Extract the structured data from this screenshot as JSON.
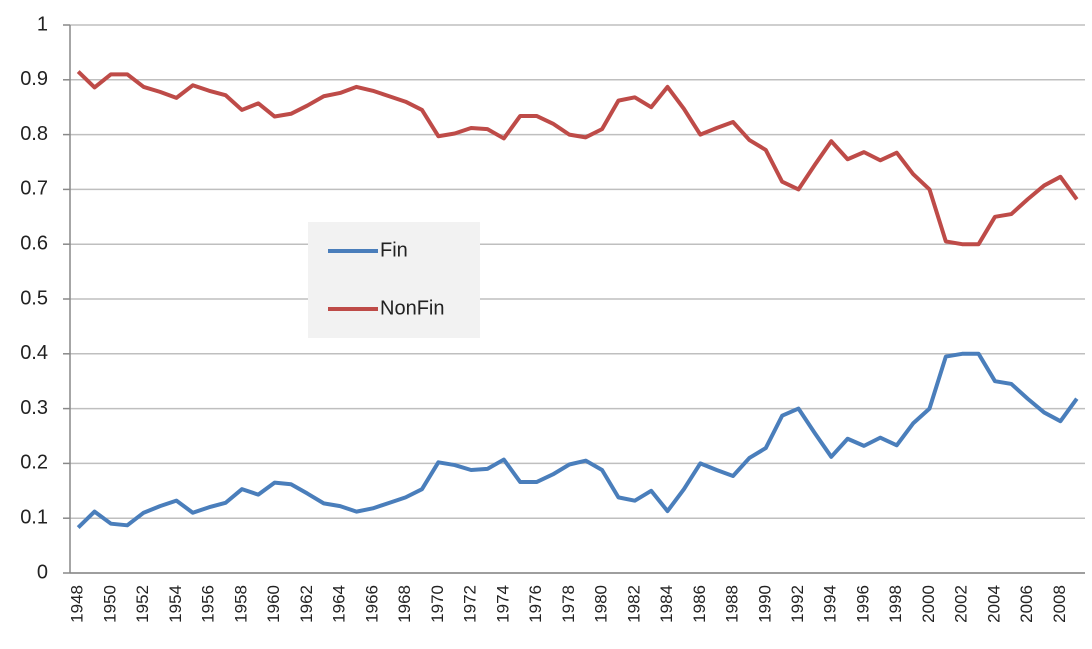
{
  "chart_data": {
    "type": "line",
    "categories": [
      "1948",
      null,
      "1950",
      null,
      "1952",
      null,
      "1954",
      null,
      "1956",
      null,
      "1958",
      null,
      "1960",
      null,
      "1962",
      null,
      "1964",
      null,
      "1966",
      null,
      "1968",
      null,
      "1970",
      null,
      "1972",
      null,
      "1974",
      null,
      "1976",
      null,
      "1978",
      null,
      "1980",
      null,
      "1982",
      null,
      "1984",
      null,
      "1986",
      null,
      "1988",
      null,
      "1990",
      null,
      "1992",
      null,
      "1994",
      null,
      "1996",
      null,
      "1998",
      null,
      "2000",
      null,
      "2002",
      null,
      "2004",
      null,
      "2006",
      null,
      "2008",
      null
    ],
    "series": [
      {
        "name": "Fin",
        "color": "#4a7ebb",
        "values": [
          0.083,
          0.112,
          0.09,
          0.087,
          0.11,
          0.122,
          0.132,
          0.11,
          0.12,
          0.128,
          0.153,
          0.143,
          0.165,
          0.162,
          0.145,
          0.127,
          0.122,
          0.112,
          0.118,
          0.128,
          0.138,
          0.153,
          0.202,
          0.197,
          0.188,
          0.19,
          0.207,
          0.166,
          0.166,
          0.18,
          0.198,
          0.205,
          0.188,
          0.138,
          0.132,
          0.15,
          0.113,
          0.153,
          0.2,
          0.188,
          0.177,
          0.21,
          0.228,
          0.287,
          0.3,
          0.255,
          0.212,
          0.245,
          0.232,
          0.247,
          0.233,
          0.273,
          0.3,
          0.395,
          0.4,
          0.4,
          0.35,
          0.345,
          0.318,
          0.293,
          0.277,
          0.318
        ]
      },
      {
        "name": "NonFin",
        "color": "#be4b48",
        "values": [
          0.915,
          0.886,
          0.91,
          0.91,
          0.887,
          0.878,
          0.867,
          0.89,
          0.88,
          0.872,
          0.845,
          0.857,
          0.833,
          0.838,
          0.853,
          0.87,
          0.876,
          0.887,
          0.88,
          0.87,
          0.86,
          0.845,
          0.797,
          0.802,
          0.812,
          0.81,
          0.793,
          0.834,
          0.834,
          0.82,
          0.8,
          0.795,
          0.81,
          0.862,
          0.868,
          0.85,
          0.887,
          0.847,
          0.8,
          0.812,
          0.823,
          0.79,
          0.772,
          0.714,
          0.7,
          0.745,
          0.788,
          0.755,
          0.768,
          0.753,
          0.767,
          0.728,
          0.7,
          0.605,
          0.6,
          0.6,
          0.65,
          0.655,
          0.682,
          0.707,
          0.723,
          0.682
        ]
      }
    ],
    "ylim": [
      0,
      1
    ],
    "yticks": [
      0,
      0.1,
      0.2,
      0.3,
      0.4,
      0.5,
      0.6,
      0.7,
      0.8,
      0.9,
      1
    ],
    "grid": true,
    "legend": "center-left"
  }
}
